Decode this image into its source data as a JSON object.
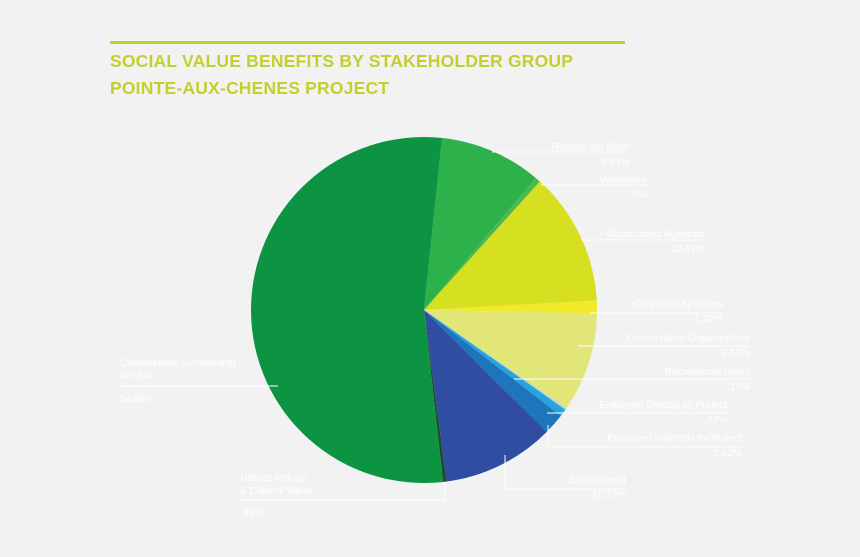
{
  "chart_data": {
    "type": "pie",
    "title": "SOCIAL VALUE BENEFITS BY STAKEHOLDER GROUP",
    "subtitle": "POINTE-AUX-CHENES PROJECT",
    "slices": [
      {
        "name": "Restore the Earth",
        "value_label": "9.81%",
        "value": 9.81,
        "color": "#2cb14b"
      },
      {
        "name": "Volunteers",
        "value_label": ".5%",
        "value": 0.5,
        "color": "#4db848"
      },
      {
        "name": "Government Agencies",
        "value_label": "12.81%",
        "value": 12.81,
        "color": "#d7df21"
      },
      {
        "name": "Corporate Sponsors",
        "value_label": "1.22%",
        "value": 1.22,
        "color": "#f0ea2a"
      },
      {
        "name": "Conservation Organizations",
        "value_label": "9.59%",
        "value": 9.59,
        "color": "#e2e678"
      },
      {
        "name": "Recreational Users",
        "value_label": ".15%",
        "value": 0.15,
        "color": "#9fd6f3"
      },
      {
        "name": "Employed Directly by Project",
        "value_label": ".72%",
        "value": 0.72,
        "color": "#29a3dc"
      },
      {
        "name": "Employed Indirectly by Project",
        "value_label": "2.02%",
        "value": 2.02,
        "color": "#1d75bb"
      },
      {
        "name": "Environment",
        "value_label": "10.77%",
        "value": 10.77,
        "color": "#2f4ea1"
      },
      {
        "name": "Habitat Refuge & Cultural Value",
        "value_label": ".35%",
        "value": 0.35,
        "color": "#1f4b35"
      },
      {
        "name": "Communities Surrounding the Site",
        "value_label": "54.98%",
        "value": 54.98,
        "color": "#0d9442"
      }
    ],
    "start_angle_deg": 84,
    "direction": "clockwise",
    "legend": "none"
  }
}
